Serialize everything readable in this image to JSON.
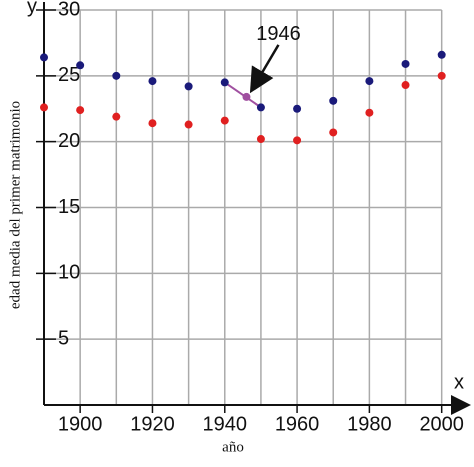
{
  "chart_data": {
    "type": "scatter",
    "x_axis_symbol": "x",
    "y_axis_symbol": "y",
    "x_label": "año",
    "y_label": "edad media del primer matrimonio",
    "x": [
      1890,
      1900,
      1910,
      1920,
      1930,
      1940,
      1950,
      1960,
      1970,
      1980,
      1990,
      2000
    ],
    "series": [
      {
        "color": "#1a1a7a",
        "values": [
          26.4,
          25.8,
          25.0,
          24.6,
          24.2,
          24.5,
          22.6,
          22.5,
          23.1,
          24.6,
          25.9,
          26.6
        ]
      },
      {
        "color": "#e02020",
        "values": [
          22.6,
          22.4,
          21.9,
          21.4,
          21.3,
          21.6,
          20.2,
          20.1,
          20.7,
          22.2,
          24.3,
          25.0
        ]
      }
    ],
    "annotation": {
      "text": "1946",
      "x": 1946,
      "y": 23.4,
      "color": "#a050a0"
    },
    "xlim": [
      1890,
      2007
    ],
    "ylim": [
      0,
      30
    ],
    "xticks": [
      1900,
      1920,
      1940,
      1960,
      1980,
      2000
    ],
    "xgrid": [
      1900,
      1910,
      1920,
      1930,
      1940,
      1950,
      1960,
      1970,
      1980,
      1990,
      2000
    ],
    "yticks": [
      5,
      10,
      15,
      20,
      25,
      30
    ],
    "grid": true
  }
}
